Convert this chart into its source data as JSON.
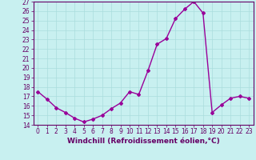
{
  "x": [
    0,
    1,
    2,
    3,
    4,
    5,
    6,
    7,
    8,
    9,
    10,
    11,
    12,
    13,
    14,
    15,
    16,
    17,
    18,
    19,
    20,
    21,
    22,
    23
  ],
  "y": [
    17.5,
    16.7,
    15.8,
    15.3,
    14.7,
    14.3,
    14.6,
    15.0,
    15.7,
    16.3,
    17.5,
    17.2,
    19.7,
    22.5,
    23.1,
    25.2,
    26.2,
    27.0,
    25.8,
    15.3,
    16.1,
    16.8,
    17.0,
    16.8
  ],
  "line_color": "#990099",
  "marker": "D",
  "marker_size": 2.0,
  "bg_color": "#c8f0f0",
  "grid_color": "#aadddd",
  "xlabel": "Windchill (Refroidissement éolien,°C)",
  "ylim": [
    14,
    27
  ],
  "xlim": [
    -0.5,
    23.5
  ],
  "yticks": [
    14,
    15,
    16,
    17,
    18,
    19,
    20,
    21,
    22,
    23,
    24,
    25,
    26,
    27
  ],
  "xticks": [
    0,
    1,
    2,
    3,
    4,
    5,
    6,
    7,
    8,
    9,
    10,
    11,
    12,
    13,
    14,
    15,
    16,
    17,
    18,
    19,
    20,
    21,
    22,
    23
  ],
  "tick_fontsize": 5.5,
  "label_fontsize": 6.5,
  "line_width": 1.0
}
